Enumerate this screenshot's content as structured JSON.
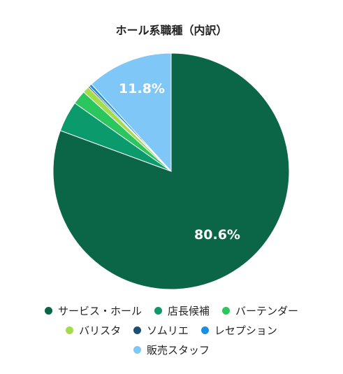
{
  "chart_data": {
    "type": "pie",
    "title": "ホール系職種（内訳）",
    "slices": [
      {
        "name": "サービス・ホール",
        "value": 80.6,
        "color": "#0B6647",
        "label": "80.6%"
      },
      {
        "name": "店長候補",
        "value": 4.2,
        "color": "#0A9A6B",
        "label": ""
      },
      {
        "name": "バーテンダー",
        "value": 1.9,
        "color": "#2CC65E",
        "label": ""
      },
      {
        "name": "バリスタ",
        "value": 0.9,
        "color": "#A3DC4D",
        "label": ""
      },
      {
        "name": "ソムリエ",
        "value": 0.2,
        "color": "#1C4F74",
        "label": ""
      },
      {
        "name": "レセプション",
        "value": 0.4,
        "color": "#1C8EE0",
        "label": ""
      },
      {
        "name": "販売スタッフ",
        "value": 11.8,
        "color": "#7FC7F6",
        "label": "11.8%"
      }
    ],
    "legend_position": "bottom"
  }
}
